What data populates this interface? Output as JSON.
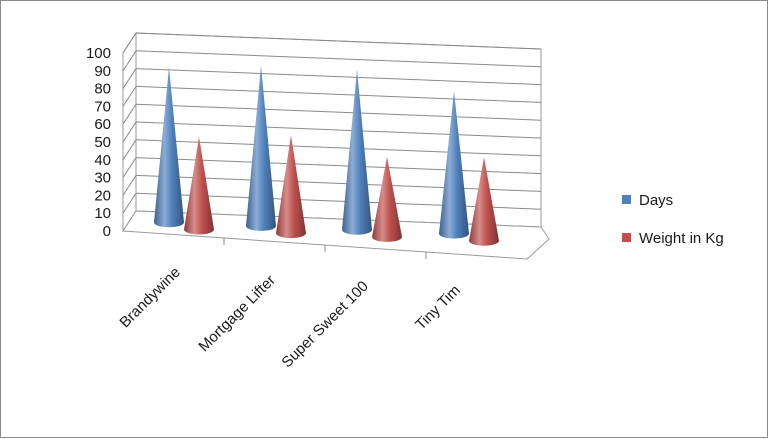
{
  "chart_data": {
    "type": "bar",
    "style": "3d-cone",
    "categories": [
      "Brandywine",
      "Mortgage Lifter",
      "Super Sweet 100",
      "Tiny Tim"
    ],
    "series": [
      {
        "name": "Days",
        "values": [
          87,
          90,
          90,
          80
        ],
        "color": "#4f81bd"
      },
      {
        "name": "Weight in Kg",
        "values": [
          52,
          55,
          45,
          47
        ],
        "color": "#c0504d"
      }
    ],
    "yticks": [
      "0",
      "10",
      "20",
      "30",
      "40",
      "50",
      "60",
      "70",
      "80",
      "90",
      "100"
    ],
    "ylim": [
      0,
      100
    ],
    "grid": true,
    "legend_position": "right"
  }
}
